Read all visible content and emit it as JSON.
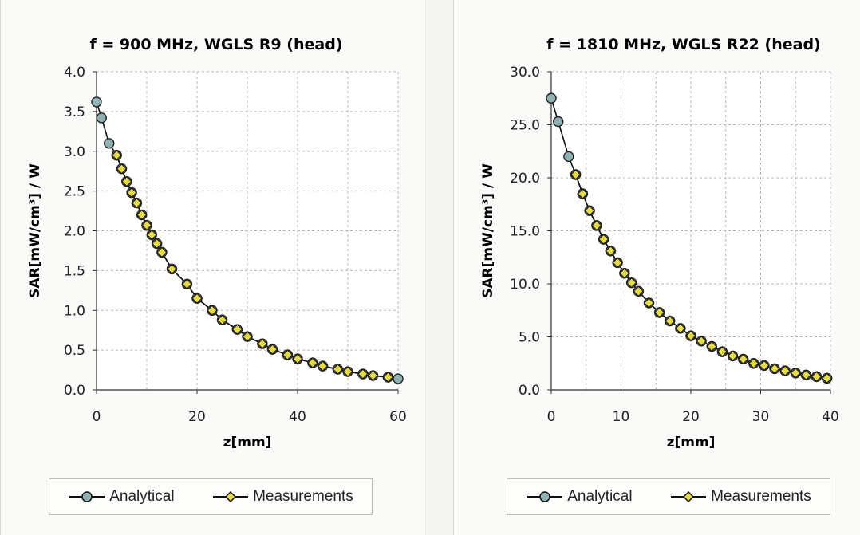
{
  "chart_data": [
    {
      "type": "line",
      "title": "f = 900 MHz, WGLS R9 (head)",
      "xlabel": "z[mm]",
      "ylabel": "SAR[mW/cm³] / W",
      "xlim": [
        0,
        60
      ],
      "ylim": [
        0,
        4.0
      ],
      "xticks": [
        "0",
        "20",
        "40",
        "60"
      ],
      "yticks": [
        "0.0",
        "0.5",
        "1.0",
        "1.5",
        "2.0",
        "2.5",
        "3.0",
        "3.5",
        "4.0"
      ],
      "grid": true,
      "legend_position": "bottom",
      "series": [
        {
          "name": "Analytical",
          "marker_color": "#8fb1b4",
          "x": [
            0,
            1,
            2.5,
            4,
            5,
            6,
            7,
            8,
            9,
            10,
            11,
            12,
            13,
            15,
            18,
            20,
            23,
            25,
            28,
            30,
            33,
            35,
            38,
            40,
            43,
            45,
            48,
            50,
            53,
            55,
            58,
            60
          ],
          "y": [
            3.62,
            3.42,
            3.1,
            2.95,
            2.78,
            2.62,
            2.48,
            2.35,
            2.2,
            2.07,
            1.95,
            1.84,
            1.73,
            1.52,
            1.33,
            1.15,
            1.0,
            0.88,
            0.76,
            0.67,
            0.58,
            0.51,
            0.44,
            0.39,
            0.34,
            0.3,
            0.26,
            0.23,
            0.2,
            0.18,
            0.16,
            0.14
          ]
        },
        {
          "name": "Measurements",
          "marker_color": "#e6dc3c",
          "x": [
            4,
            5,
            6,
            7,
            8,
            9,
            10,
            11,
            12,
            13,
            15,
            18,
            20,
            23,
            25,
            28,
            30,
            33,
            35,
            38,
            40,
            43,
            45,
            48,
            50,
            53,
            55,
            58
          ],
          "y": [
            2.95,
            2.78,
            2.62,
            2.48,
            2.35,
            2.2,
            2.07,
            1.95,
            1.84,
            1.73,
            1.52,
            1.33,
            1.15,
            1.0,
            0.88,
            0.76,
            0.67,
            0.58,
            0.51,
            0.44,
            0.39,
            0.34,
            0.3,
            0.26,
            0.23,
            0.2,
            0.18,
            0.16
          ]
        }
      ]
    },
    {
      "type": "line",
      "title": "f = 1810 MHz, WGLS R22 (head)",
      "xlabel": "z[mm]",
      "ylabel": "SAR[mW/cm³] / W",
      "xlim": [
        0,
        40
      ],
      "ylim": [
        0,
        30.0
      ],
      "xticks": [
        "0",
        "10",
        "20",
        "30",
        "40"
      ],
      "yticks": [
        "0.0",
        "5.0",
        "10.0",
        "15.0",
        "20.0",
        "25.0",
        "30.0"
      ],
      "grid": true,
      "legend_position": "bottom",
      "series": [
        {
          "name": "Analytical",
          "marker_color": "#8fb1b4",
          "x": [
            0,
            1,
            2.5,
            3.5,
            4.5,
            5.5,
            6.5,
            7.5,
            8.5,
            9.5,
            10.5,
            11.5,
            12.5,
            14,
            15.5,
            17,
            18.5,
            20,
            21.5,
            23,
            24.5,
            26,
            27.5,
            29,
            30.5,
            32,
            33.5,
            35,
            36.5,
            38,
            39.5
          ],
          "y": [
            27.5,
            25.3,
            22.0,
            20.3,
            18.5,
            16.9,
            15.5,
            14.2,
            13.1,
            12.0,
            11.0,
            10.1,
            9.3,
            8.2,
            7.3,
            6.5,
            5.8,
            5.1,
            4.6,
            4.1,
            3.6,
            3.2,
            2.9,
            2.5,
            2.3,
            2.0,
            1.8,
            1.6,
            1.4,
            1.25,
            1.1
          ]
        },
        {
          "name": "Measurements",
          "marker_color": "#e6dc3c",
          "x": [
            3.5,
            4.5,
            5.5,
            6.5,
            7.5,
            8.5,
            9.5,
            10.5,
            11.5,
            12.5,
            14,
            15.5,
            17,
            18.5,
            20,
            21.5,
            23,
            24.5,
            26,
            27.5,
            29,
            30.5,
            32,
            33.5,
            35,
            36.5,
            38,
            39.5
          ],
          "y": [
            20.3,
            18.5,
            16.9,
            15.5,
            14.2,
            13.1,
            12.0,
            11.0,
            10.1,
            9.3,
            8.2,
            7.3,
            6.5,
            5.8,
            5.1,
            4.6,
            4.1,
            3.6,
            3.2,
            2.9,
            2.5,
            2.3,
            2.0,
            1.8,
            1.6,
            1.4,
            1.25,
            1.1
          ]
        }
      ]
    }
  ]
}
